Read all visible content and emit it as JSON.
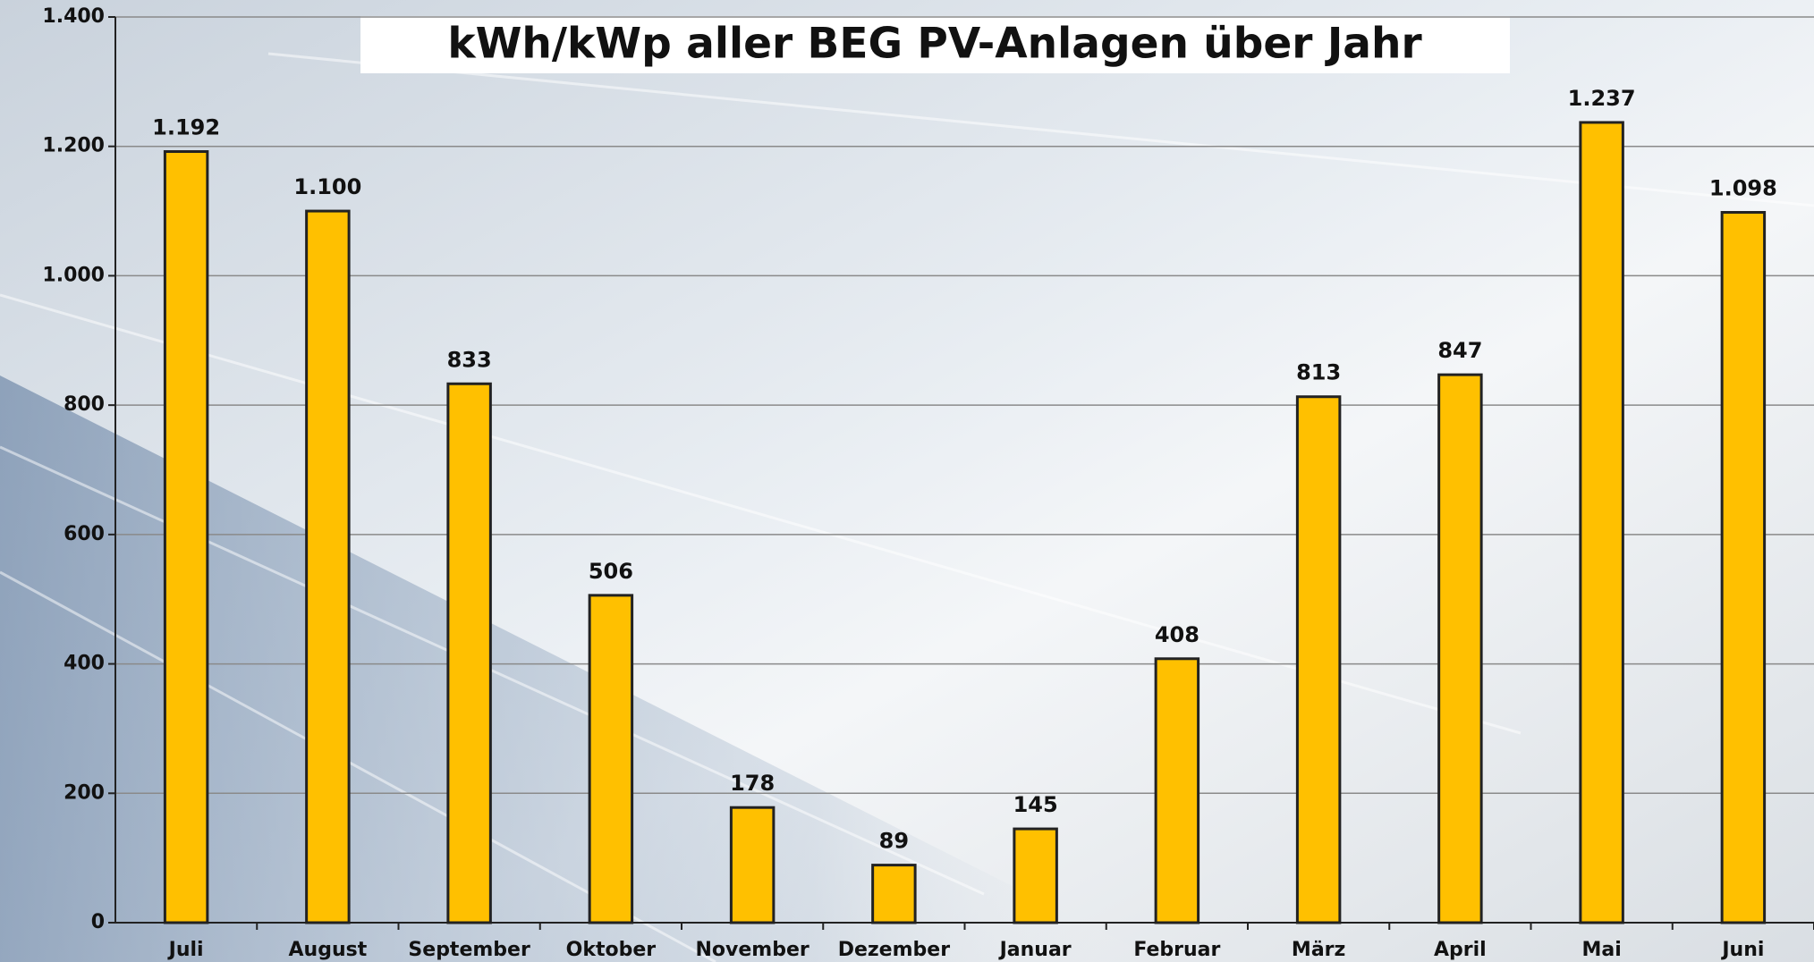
{
  "chart_data": {
    "type": "bar",
    "title": "kWh/kWp aller BEG PV-Anlagen über Jahr",
    "categories": [
      "Juli",
      "August",
      "September",
      "Oktober",
      "November",
      "Dezember",
      "Januar",
      "Februar",
      "März",
      "April",
      "Mai",
      "Juni"
    ],
    "values": [
      1192,
      1100,
      833,
      506,
      178,
      89,
      145,
      408,
      813,
      847,
      1237,
      1098
    ],
    "value_labels": [
      "1.192",
      "1.100",
      "833",
      "506",
      "178",
      "89",
      "145",
      "408",
      "813",
      "847",
      "1.237",
      "1.098"
    ],
    "color": "#ffc000",
    "ylim": [
      0,
      1400
    ],
    "yticks": [
      0,
      200,
      400,
      600,
      800,
      {
        "value": 1000,
        "label": "1.000"
      },
      {
        "value": 1200,
        "label": "1.200"
      },
      {
        "value": 1400,
        "label": "1.400"
      }
    ],
    "grid": true
  }
}
